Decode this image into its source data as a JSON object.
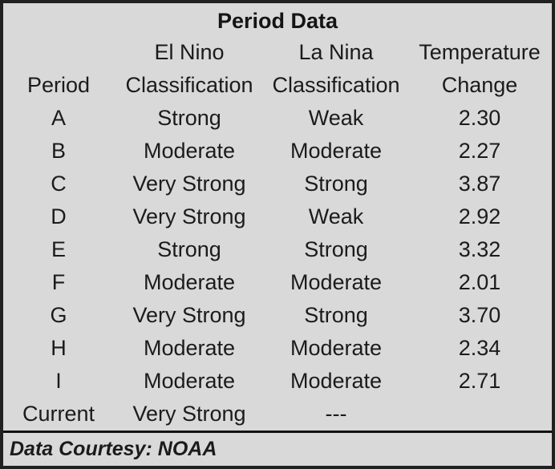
{
  "title": "Period Data",
  "header": {
    "columns": [
      {
        "line1": "",
        "line2": "Period"
      },
      {
        "line1": "El Nino",
        "line2": "Classification"
      },
      {
        "line1": "La Nina",
        "line2": "Classification"
      },
      {
        "line1": "Temperature",
        "line2": "Change"
      }
    ]
  },
  "footer": {
    "text": "Data Courtesy: NOAA"
  },
  "colors": {
    "background": "#d9d9d9",
    "border": "#212121",
    "text": "#1b1b1b"
  },
  "chart_data": {
    "type": "table",
    "title": "Period Data",
    "columns": [
      "Period",
      "El Nino Classification",
      "La Nina Classification",
      "Temperature Change"
    ],
    "rows": [
      [
        "A",
        "Strong",
        "Weak",
        "2.30"
      ],
      [
        "B",
        "Moderate",
        "Moderate",
        "2.27"
      ],
      [
        "C",
        "Very Strong",
        "Strong",
        "3.87"
      ],
      [
        "D",
        "Very Strong",
        "Weak",
        "2.92"
      ],
      [
        "E",
        "Strong",
        "Strong",
        "3.32"
      ],
      [
        "F",
        "Moderate",
        "Moderate",
        "2.01"
      ],
      [
        "G",
        "Very Strong",
        "Strong",
        "3.70"
      ],
      [
        "H",
        "Moderate",
        "Moderate",
        "2.34"
      ],
      [
        "I",
        "Moderate",
        "Moderate",
        "2.71"
      ],
      [
        "Current",
        "Very Strong",
        "---",
        ""
      ]
    ],
    "source_note": "Data Courtesy: NOAA"
  }
}
